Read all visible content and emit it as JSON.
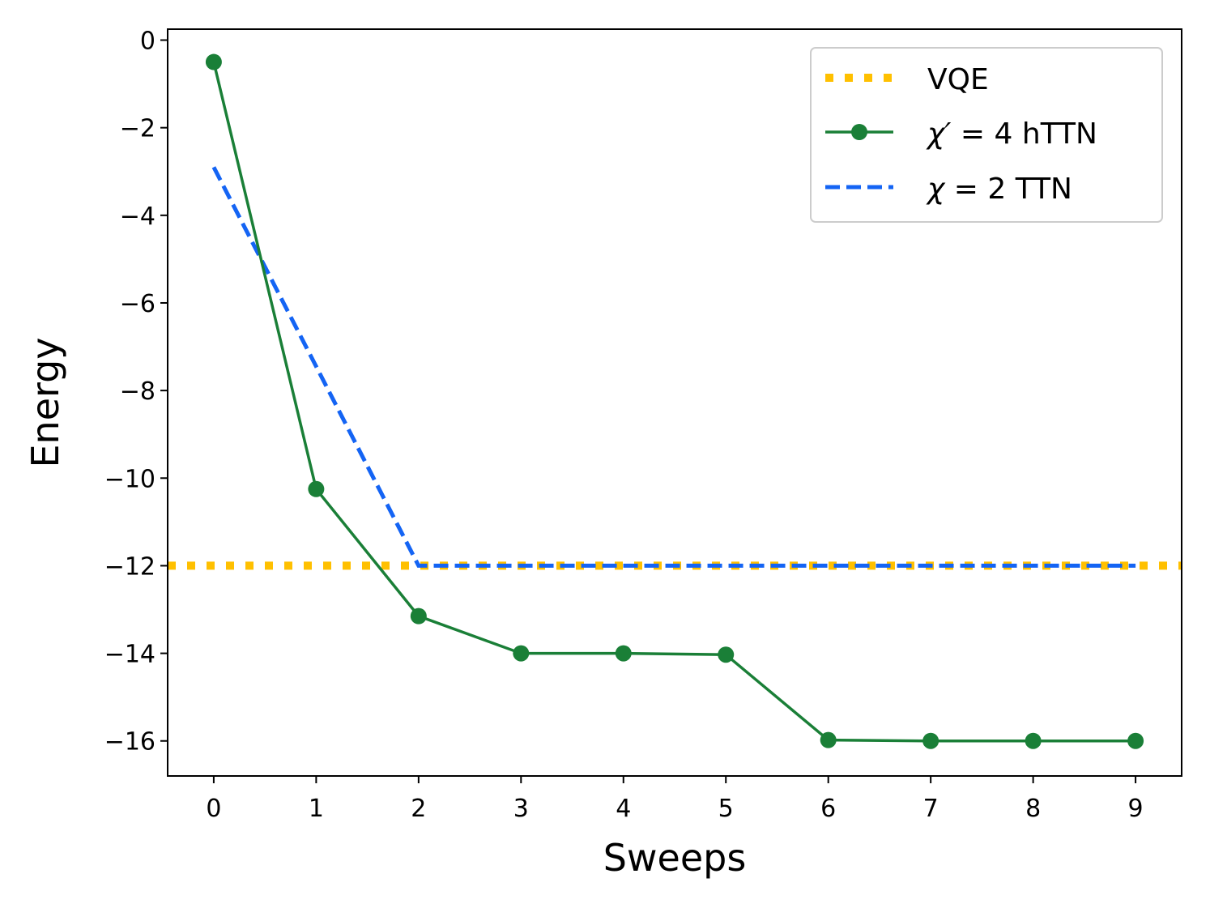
{
  "chart_data": {
    "type": "line",
    "title": "",
    "xlabel": "Sweeps",
    "ylabel": "Energy",
    "xlim": [
      -0.45,
      9.45
    ],
    "ylim": [
      -16.8,
      0.25
    ],
    "x_ticks": [
      0,
      1,
      2,
      3,
      4,
      5,
      6,
      7,
      8,
      9
    ],
    "y_ticks": [
      0,
      -2,
      -4,
      -6,
      -8,
      -10,
      -12,
      -14,
      -16
    ],
    "y_tick_labels": [
      "0",
      "−2",
      "−4",
      "−6",
      "−8",
      "−10",
      "−12",
      "−14",
      "−16"
    ],
    "grid": false,
    "legend_position": "upper right",
    "series": [
      {
        "name": "VQE",
        "legend_prefix": "",
        "legend_main": "VQE",
        "style": "dotted-hline",
        "color": "#FFC000",
        "y": -12
      },
      {
        "name": "χ′ = 4 hTTN",
        "legend_prefix": "χ′",
        "legend_main": " = 4 hTTN",
        "style": "solid-markers",
        "color": "#1A7F37",
        "x": [
          0,
          1,
          2,
          3,
          4,
          5,
          6,
          7,
          8,
          9
        ],
        "y": [
          -0.5,
          -10.25,
          -13.15,
          -14.0,
          -14.0,
          -14.03,
          -15.98,
          -16.0,
          -16.0,
          -16.0
        ]
      },
      {
        "name": "χ = 2 TTN",
        "legend_prefix": "χ",
        "legend_main": " = 2 TTN",
        "style": "dashed",
        "color": "#1464F4",
        "x": [
          0,
          2,
          3,
          4,
          5,
          6,
          7,
          8,
          9
        ],
        "y": [
          -2.9,
          -12.0,
          -12.0,
          -12.0,
          -12.0,
          -12.0,
          -12.0,
          -12.0,
          -12.0
        ]
      }
    ]
  }
}
